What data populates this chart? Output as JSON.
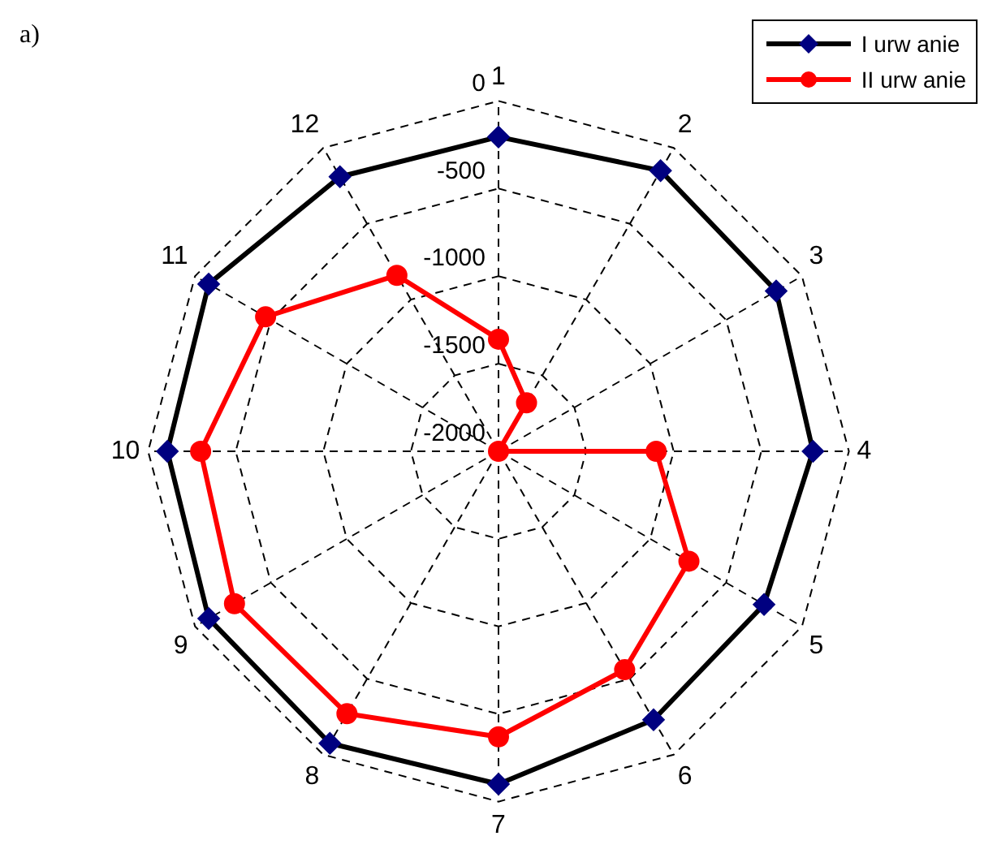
{
  "chart_data": {
    "type": "radar",
    "annotations": [
      "a)"
    ],
    "categories": [
      "1",
      "2",
      "3",
      "4",
      "5",
      "6",
      "7",
      "8",
      "9",
      "10",
      "11",
      "12"
    ],
    "ylim": [
      -2000,
      0
    ],
    "yticks": [
      -2000,
      -1500,
      -1000,
      -500,
      0
    ],
    "grid": true,
    "legend": "top right",
    "series": [
      {
        "name": "I urw anie",
        "color": "#000000",
        "marker": "diamond",
        "values": [
          -205,
          -150,
          -170,
          -205,
          -250,
          -230,
          -100,
          -75,
          -90,
          -110,
          -90,
          -190
        ]
      },
      {
        "name": "II urw anie",
        "color": "#ff0000",
        "marker": "circle",
        "values": [
          -1360,
          -1680,
          -2000,
          -1100,
          -745,
          -560,
          -370,
          -270,
          -260,
          -300,
          -465,
          -840
        ]
      }
    ]
  }
}
